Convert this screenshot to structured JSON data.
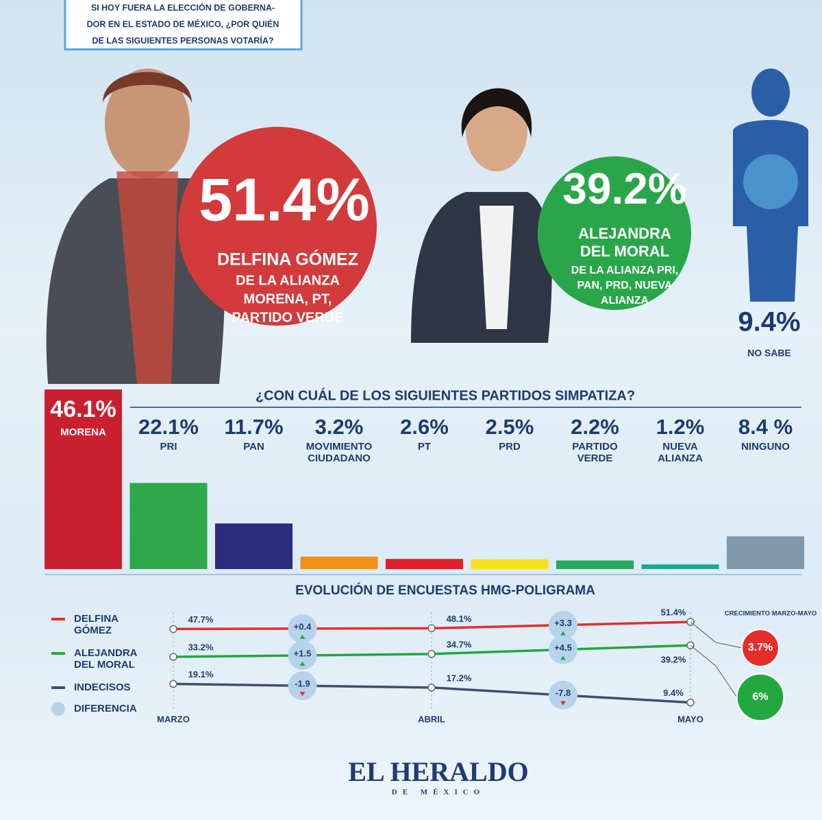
{
  "question": [
    "SI HOY FUERA LA ELECCIÓN DE GOBERNA-",
    "DOR EN EL ESTADO DE MÉXICO, ¿POR QUIÉN",
    "DE LAS SIGUIENTES PERSONAS VOTARÍA?"
  ],
  "candidates": [
    {
      "percent": "51.4%",
      "name": [
        "DELFINA GÓMEZ"
      ],
      "alliance": [
        "DE LA ALIANZA",
        "MORENA, PT,",
        "PARTIDO VERDE"
      ]
    },
    {
      "percent": "39.2%",
      "name": [
        "ALEJANDRA",
        "DEL MORAL"
      ],
      "alliance": [
        "DE LA ALIANZA PRI,",
        "PAN, PRD, NUEVA",
        "ALIANZA"
      ]
    },
    {
      "percent": "9.4%",
      "name": [
        "NO SABE"
      ]
    }
  ],
  "chart_data": [
    {
      "type": "bar",
      "title": "¿CON CUÁL DE LOS SIGUIENTES PARTIDOS SIMPATIZA?",
      "categories": [
        "MORENA",
        "PRI",
        "PAN",
        "MOVIMIENTO CIUDADANO",
        "PT",
        "PRD",
        "PARTIDO VERDE",
        "NUEVA ALIANZA",
        "NINGUNO"
      ],
      "values": [
        46.1,
        22.1,
        11.7,
        3.2,
        2.6,
        2.5,
        2.2,
        1.2,
        8.4
      ],
      "value_labels": [
        "46.1%",
        "22.1%",
        "11.7%",
        "3.2%",
        "2.6%",
        "2.5%",
        "2.2%",
        "1.2%",
        "8.4 %"
      ],
      "colors": [
        "#c8202f",
        "#2ea84a",
        "#2b2d7e",
        "#f39019",
        "#e0202a",
        "#f5e21a",
        "#27a85a",
        "#1ca98f",
        "#7f98ab"
      ]
    },
    {
      "type": "line",
      "title": "EVOLUCIÓN DE ENCUESTAS HMG-POLIGRAMA",
      "categories": [
        "MARZO",
        "ABRIL",
        "MAYO"
      ],
      "series": [
        {
          "name": "DELFINA GÓMEZ",
          "color": "#e52d2d",
          "values": [
            47.7,
            48.1,
            51.4
          ],
          "value_labels": [
            "47.7%",
            "48.1%",
            "51.4%"
          ],
          "differences": [
            0.4,
            3.3
          ],
          "difference_labels": [
            "+0.4",
            "+3.3"
          ]
        },
        {
          "name": "ALEJANDRA DEL MORAL",
          "color": "#22a83e",
          "values": [
            33.2,
            34.7,
            39.2
          ],
          "value_labels": [
            "33.2%",
            "34.7%",
            "39.2%"
          ],
          "differences": [
            1.5,
            4.5
          ],
          "difference_labels": [
            "+1.5",
            "+4.5"
          ]
        },
        {
          "name": "INDECISOS",
          "color": "#3d4f6e",
          "values": [
            19.1,
            17.2,
            9.4
          ],
          "value_labels": [
            "19.1%",
            "17.2%",
            "9.4%"
          ],
          "differences": [
            -1.9,
            -7.8
          ],
          "difference_labels": [
            "-1.9",
            "-7.8"
          ]
        }
      ],
      "difference_legend": "DIFERENCIA",
      "growth": {
        "title": "CRECIMIENTO MARZO-MAYO",
        "values": [
          3.7,
          6
        ],
        "value_labels": [
          "3.7%",
          "6%"
        ],
        "colors": [
          "#e52d2d",
          "#22a83e"
        ]
      }
    }
  ],
  "footer": {
    "brand": "EL HERALDO",
    "sub": "DE MÉXICO"
  }
}
